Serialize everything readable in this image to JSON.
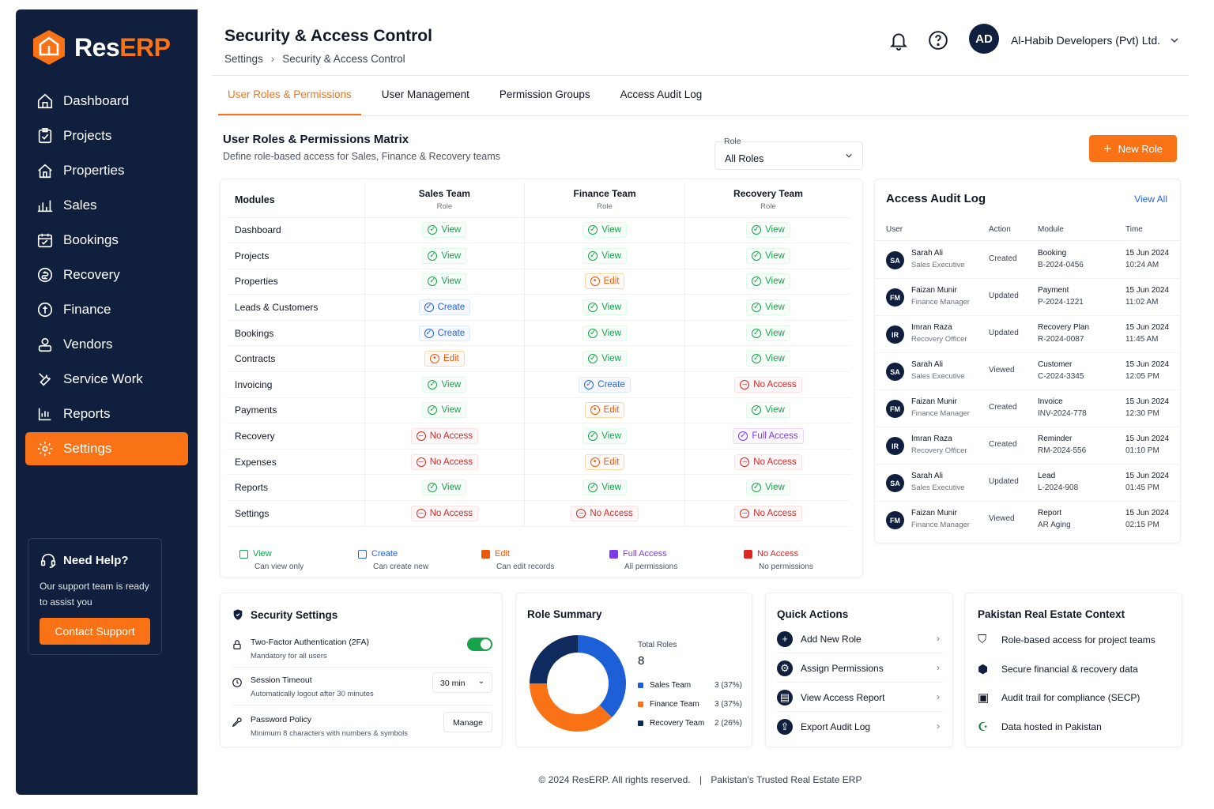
{
  "brand": {
    "name_a": "Res",
    "name_b": "ERP"
  },
  "sidebar": {
    "items": [
      {
        "label": "Dashboard",
        "icon": "home-icon"
      },
      {
        "label": "Projects",
        "icon": "clipboard-icon"
      },
      {
        "label": "Properties",
        "icon": "house-icon"
      },
      {
        "label": "Sales",
        "icon": "chart-bars-icon"
      },
      {
        "label": "Bookings",
        "icon": "calendar-icon"
      },
      {
        "label": "Recovery",
        "icon": "money-cycle-icon"
      },
      {
        "label": "Finance",
        "icon": "coin-icon"
      },
      {
        "label": "Vendors",
        "icon": "vendor-icon"
      },
      {
        "label": "Service Work",
        "icon": "tools-icon"
      },
      {
        "label": "Reports",
        "icon": "bar-chart-icon"
      },
      {
        "label": "Settings",
        "icon": "gear-icon",
        "active": true
      }
    ],
    "help": {
      "title": "Need Help?",
      "text": "Our support team is ready to assist you",
      "button": "Contact Support"
    }
  },
  "header": {
    "title": "Security & Access Control",
    "breadcrumb": [
      "Settings",
      "Security & Access Control"
    ],
    "avatar": "AD",
    "company": "Al-Habib Developers (Pvt) Ltd."
  },
  "tabs": [
    "User Roles & Permissions",
    "User Management",
    "Permission Groups",
    "Access Audit Log"
  ],
  "matrix": {
    "title": "User Roles & Permissions Matrix",
    "subtitle": "Define role-based access for Sales, Finance & Recovery teams",
    "role_filter": {
      "label": "Role",
      "value": "All Roles"
    },
    "new_role": "New Role",
    "module_header": "Modules",
    "columns": [
      {
        "name": "Sales Team",
        "sub": "Role"
      },
      {
        "name": "Finance Team",
        "sub": "Role"
      },
      {
        "name": "Recovery Team",
        "sub": "Role"
      }
    ],
    "rows": [
      {
        "module": "Dashboard",
        "perms": [
          "View",
          "View",
          "View"
        ]
      },
      {
        "module": "Projects",
        "perms": [
          "View",
          "View",
          "View"
        ]
      },
      {
        "module": "Properties",
        "perms": [
          "View",
          "Edit",
          "View"
        ]
      },
      {
        "module": "Leads & Customers",
        "perms": [
          "Create",
          "View",
          "View"
        ]
      },
      {
        "module": "Bookings",
        "perms": [
          "Create",
          "View",
          "View"
        ]
      },
      {
        "module": "Contracts",
        "perms": [
          "Edit",
          "View",
          "View"
        ]
      },
      {
        "module": "Invoicing",
        "perms": [
          "View",
          "Create",
          "No Access"
        ]
      },
      {
        "module": "Payments",
        "perms": [
          "View",
          "Edit",
          "View"
        ]
      },
      {
        "module": "Recovery",
        "perms": [
          "No Access",
          "View",
          "Full Access"
        ]
      },
      {
        "module": "Expenses",
        "perms": [
          "No Access",
          "Edit",
          "No Access"
        ]
      },
      {
        "module": "Reports",
        "perms": [
          "View",
          "View",
          "View"
        ]
      },
      {
        "module": "Settings",
        "perms": [
          "No Access",
          "No Access",
          "No Access"
        ]
      }
    ],
    "legend": [
      {
        "label": "View",
        "desc": "Can view only",
        "color": "#16a34a"
      },
      {
        "label": "Create",
        "desc": "Can create new",
        "color": "#2563eb"
      },
      {
        "label": "Edit",
        "desc": "Can edit records",
        "color": "#ea580c"
      },
      {
        "label": "Full Access",
        "desc": "All permissions",
        "color": "#7c3aed"
      },
      {
        "label": "No Access",
        "desc": "No permissions",
        "color": "#dc2626"
      }
    ]
  },
  "audit": {
    "title": "Access Audit Log",
    "view_all": "View All",
    "headers": [
      "User",
      "Action",
      "Module",
      "Time"
    ],
    "rows": [
      {
        "initials": "SA",
        "name": "Sarah Ali",
        "role": "Sales Executive",
        "action": "Created",
        "module": "Booking",
        "ref": "B-2024-0456",
        "date": "15 Jun 2024",
        "time": "10:24 AM"
      },
      {
        "initials": "FM",
        "name": "Faizan Munir",
        "role": "Finance Manager",
        "action": "Updated",
        "module": "Payment",
        "ref": "P-2024-1221",
        "date": "15 Jun 2024",
        "time": "11:02 AM"
      },
      {
        "initials": "IR",
        "name": "Imran Raza",
        "role": "Recovery Officer",
        "action": "Updated",
        "module": "Recovery Plan",
        "ref": "R-2024-0087",
        "date": "15 Jun 2024",
        "time": "11:45 AM"
      },
      {
        "initials": "SA",
        "name": "Sarah Ali",
        "role": "Sales Executive",
        "action": "Viewed",
        "module": "Customer",
        "ref": "C-2024-3345",
        "date": "15 Jun 2024",
        "time": "12:05 PM"
      },
      {
        "initials": "FM",
        "name": "Faizan Munir",
        "role": "Finance Manager",
        "action": "Created",
        "module": "Invoice",
        "ref": "INV-2024-778",
        "date": "15 Jun 2024",
        "time": "12:30 PM"
      },
      {
        "initials": "IR",
        "name": "Imran Raza",
        "role": "Recovery Officer",
        "action": "Created",
        "module": "Reminder",
        "ref": "RM-2024-556",
        "date": "15 Jun 2024",
        "time": "01:10 PM"
      },
      {
        "initials": "SA",
        "name": "Sarah Ali",
        "role": "Sales Executive",
        "action": "Updated",
        "module": "Lead",
        "ref": "L-2024-908",
        "date": "15 Jun 2024",
        "time": "01:45 PM"
      },
      {
        "initials": "FM",
        "name": "Faizan Munir",
        "role": "Finance Manager",
        "action": "Viewed",
        "module": "Report",
        "ref": "AR Aging",
        "date": "15 Jun 2024",
        "time": "02:15 PM"
      }
    ]
  },
  "security": {
    "title": "Security Settings",
    "two_fa": {
      "label": "Two-Factor Authentication (2FA)",
      "desc": "Mandatory for all users",
      "enabled": true
    },
    "session": {
      "label": "Session Timeout",
      "desc": "Automatically logout after 30 minutes",
      "value": "30 min"
    },
    "password": {
      "label": "Password Policy",
      "desc": "Minimum 8 characters with numbers & symbols",
      "button": "Manage"
    }
  },
  "role_summary": {
    "title": "Role Summary",
    "total_label": "Total Roles",
    "total": "8",
    "items": [
      {
        "name": "Sales Team",
        "count": "3 (37%)",
        "value": 3,
        "color": "#1d5fd6"
      },
      {
        "name": "Finance Team",
        "count": "3 (37%)",
        "value": 3,
        "color": "#f97316"
      },
      {
        "name": "Recovery Team",
        "count": "2 (26%)",
        "value": 2,
        "color": "#0f2a5c"
      }
    ]
  },
  "quick_actions": {
    "title": "Quick Actions",
    "items": [
      "Add New Role",
      "Assign Permissions",
      "View Access Report",
      "Export Audit Log"
    ]
  },
  "context": {
    "title": "Pakistan Real Estate Context",
    "items": [
      "Role-based access for project teams",
      "Secure financial & recovery data",
      "Audit trail for compliance (SECP)",
      "Data hosted in Pakistan"
    ]
  },
  "footer": {
    "copyright": "© 2024 ResERP. All rights reserved.",
    "separator": "|",
    "tagline": "Pakistan's Trusted Real Estate ERP"
  }
}
